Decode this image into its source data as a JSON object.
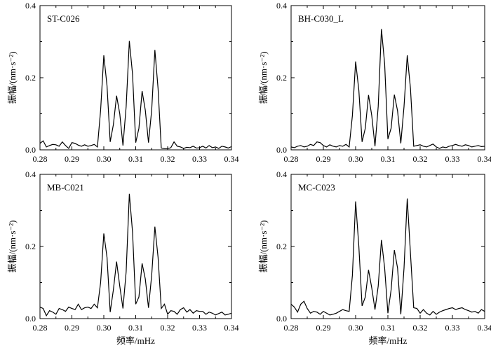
{
  "chart_data": [
    {
      "type": "line",
      "title": "ST-C026",
      "xlabel": "",
      "ylabel": "振幅/(nm·s⁻²)",
      "xlim": [
        0.28,
        0.34
      ],
      "ylim": [
        0.0,
        0.4
      ],
      "xticks": [
        "0.28",
        "0.29",
        "0.30",
        "0.31",
        "0.32",
        "0.33",
        "0.34"
      ],
      "yticks": [
        "0.0",
        "0.2",
        "0.4"
      ],
      "series": [
        {
          "name": "ST-C026",
          "x": [
            0.28,
            0.281,
            0.282,
            0.283,
            0.284,
            0.285,
            0.286,
            0.287,
            0.288,
            0.289,
            0.29,
            0.291,
            0.292,
            0.293,
            0.294,
            0.295,
            0.296,
            0.297,
            0.298,
            0.299,
            0.3,
            0.301,
            0.302,
            0.303,
            0.304,
            0.305,
            0.306,
            0.307,
            0.308,
            0.309,
            0.31,
            0.311,
            0.312,
            0.313,
            0.314,
            0.315,
            0.316,
            0.317,
            0.318,
            0.319,
            0.32,
            0.321,
            0.322,
            0.323,
            0.324,
            0.325,
            0.326,
            0.327,
            0.328,
            0.329,
            0.33,
            0.331,
            0.332,
            0.333,
            0.334,
            0.335,
            0.336,
            0.337,
            0.338,
            0.339,
            0.34
          ],
          "values": [
            0.018,
            0.025,
            0.008,
            0.012,
            0.015,
            0.014,
            0.01,
            0.022,
            0.012,
            0.004,
            0.02,
            0.018,
            0.013,
            0.01,
            0.014,
            0.01,
            0.012,
            0.015,
            0.008,
            0.11,
            0.262,
            0.178,
            0.022,
            0.07,
            0.15,
            0.1,
            0.012,
            0.12,
            0.302,
            0.21,
            0.02,
            0.06,
            0.163,
            0.11,
            0.02,
            0.11,
            0.277,
            0.17,
            0.005,
            0.003,
            0.003,
            0.006,
            0.022,
            0.01,
            0.008,
            0.004,
            0.007,
            0.006,
            0.01,
            0.005,
            0.006,
            0.01,
            0.005,
            0.012,
            0.006,
            0.008,
            0.004,
            0.01,
            0.008,
            0.005,
            0.009
          ]
        }
      ]
    },
    {
      "type": "line",
      "title": "BH-C030_L",
      "xlabel": "",
      "ylabel": "振幅/(nm·s⁻²)",
      "xlim": [
        0.28,
        0.34
      ],
      "ylim": [
        0.0,
        0.4
      ],
      "xticks": [
        "0.28",
        "0.29",
        "0.30",
        "0.31",
        "0.32",
        "0.33",
        "0.34"
      ],
      "yticks": [
        "0.0",
        "0.2",
        "0.4"
      ],
      "series": [
        {
          "name": "BH-C030_L",
          "x": [
            0.28,
            0.281,
            0.282,
            0.283,
            0.284,
            0.285,
            0.286,
            0.287,
            0.288,
            0.289,
            0.29,
            0.291,
            0.292,
            0.293,
            0.294,
            0.295,
            0.296,
            0.297,
            0.298,
            0.299,
            0.3,
            0.301,
            0.302,
            0.303,
            0.304,
            0.305,
            0.306,
            0.307,
            0.308,
            0.309,
            0.31,
            0.311,
            0.312,
            0.313,
            0.314,
            0.315,
            0.316,
            0.317,
            0.318,
            0.319,
            0.32,
            0.321,
            0.322,
            0.323,
            0.324,
            0.325,
            0.326,
            0.327,
            0.328,
            0.329,
            0.33,
            0.331,
            0.332,
            0.333,
            0.334,
            0.335,
            0.336,
            0.337,
            0.338,
            0.339,
            0.34
          ],
          "values": [
            0.008,
            0.006,
            0.01,
            0.012,
            0.008,
            0.01,
            0.015,
            0.012,
            0.022,
            0.02,
            0.012,
            0.008,
            0.014,
            0.01,
            0.008,
            0.012,
            0.01,
            0.015,
            0.008,
            0.095,
            0.245,
            0.165,
            0.022,
            0.06,
            0.152,
            0.095,
            0.01,
            0.12,
            0.335,
            0.238,
            0.03,
            0.06,
            0.153,
            0.108,
            0.018,
            0.12,
            0.262,
            0.17,
            0.01,
            0.012,
            0.014,
            0.01,
            0.008,
            0.012,
            0.016,
            0.008,
            0.004,
            0.008,
            0.006,
            0.01,
            0.012,
            0.015,
            0.012,
            0.01,
            0.014,
            0.012,
            0.008,
            0.01,
            0.012,
            0.009,
            0.01
          ]
        }
      ]
    },
    {
      "type": "line",
      "title": "MB-C021",
      "xlabel": "频率/mHz",
      "ylabel": "振幅/(nm·s⁻²)",
      "xlim": [
        0.28,
        0.34
      ],
      "ylim": [
        0.0,
        0.4
      ],
      "xticks": [
        "0.28",
        "0.29",
        "0.30",
        "0.31",
        "0.32",
        "0.33",
        "0.34"
      ],
      "yticks": [
        "0.0",
        "0.2",
        "0.4"
      ],
      "series": [
        {
          "name": "MB-C021",
          "x": [
            0.28,
            0.281,
            0.282,
            0.283,
            0.284,
            0.285,
            0.286,
            0.287,
            0.288,
            0.289,
            0.29,
            0.291,
            0.292,
            0.293,
            0.294,
            0.295,
            0.296,
            0.297,
            0.298,
            0.299,
            0.3,
            0.301,
            0.302,
            0.303,
            0.304,
            0.305,
            0.306,
            0.307,
            0.308,
            0.309,
            0.31,
            0.311,
            0.312,
            0.313,
            0.314,
            0.315,
            0.316,
            0.317,
            0.318,
            0.319,
            0.32,
            0.321,
            0.322,
            0.323,
            0.324,
            0.325,
            0.326,
            0.327,
            0.328,
            0.329,
            0.33,
            0.331,
            0.332,
            0.333,
            0.334,
            0.335,
            0.336,
            0.337,
            0.338,
            0.339,
            0.34
          ],
          "values": [
            0.032,
            0.028,
            0.008,
            0.022,
            0.018,
            0.012,
            0.028,
            0.025,
            0.02,
            0.032,
            0.028,
            0.025,
            0.04,
            0.025,
            0.03,
            0.032,
            0.028,
            0.04,
            0.03,
            0.1,
            0.236,
            0.17,
            0.018,
            0.08,
            0.158,
            0.09,
            0.028,
            0.13,
            0.346,
            0.24,
            0.04,
            0.06,
            0.153,
            0.11,
            0.03,
            0.12,
            0.255,
            0.17,
            0.028,
            0.04,
            0.012,
            0.022,
            0.02,
            0.012,
            0.025,
            0.03,
            0.018,
            0.025,
            0.015,
            0.022,
            0.02,
            0.02,
            0.012,
            0.018,
            0.015,
            0.01,
            0.014,
            0.018,
            0.01,
            0.012,
            0.015
          ]
        }
      ]
    },
    {
      "type": "line",
      "title": "MC-C023",
      "xlabel": "频率/mHz",
      "ylabel": "振幅/(nm·s⁻²)",
      "xlim": [
        0.28,
        0.34
      ],
      "ylim": [
        0.0,
        0.4
      ],
      "xticks": [
        "0.28",
        "0.29",
        "0.30",
        "0.31",
        "0.32",
        "0.33",
        "0.34"
      ],
      "yticks": [
        "0.0",
        "0.2",
        "0.4"
      ],
      "series": [
        {
          "name": "MC-C023",
          "x": [
            0.28,
            0.281,
            0.282,
            0.283,
            0.284,
            0.285,
            0.286,
            0.287,
            0.288,
            0.289,
            0.29,
            0.291,
            0.292,
            0.293,
            0.294,
            0.295,
            0.296,
            0.297,
            0.298,
            0.299,
            0.3,
            0.301,
            0.302,
            0.303,
            0.304,
            0.305,
            0.306,
            0.307,
            0.308,
            0.309,
            0.31,
            0.311,
            0.312,
            0.313,
            0.314,
            0.315,
            0.316,
            0.317,
            0.318,
            0.319,
            0.32,
            0.321,
            0.322,
            0.323,
            0.324,
            0.325,
            0.326,
            0.327,
            0.328,
            0.329,
            0.33,
            0.331,
            0.332,
            0.333,
            0.334,
            0.335,
            0.336,
            0.337,
            0.338,
            0.339,
            0.34
          ],
          "values": [
            0.04,
            0.032,
            0.018,
            0.04,
            0.048,
            0.028,
            0.015,
            0.02,
            0.018,
            0.012,
            0.02,
            0.015,
            0.01,
            0.012,
            0.015,
            0.02,
            0.025,
            0.022,
            0.02,
            0.12,
            0.325,
            0.2,
            0.035,
            0.06,
            0.135,
            0.085,
            0.025,
            0.09,
            0.218,
            0.14,
            0.015,
            0.08,
            0.19,
            0.14,
            0.012,
            0.14,
            0.333,
            0.18,
            0.03,
            0.028,
            0.015,
            0.025,
            0.015,
            0.01,
            0.02,
            0.012,
            0.018,
            0.022,
            0.025,
            0.028,
            0.03,
            0.025,
            0.028,
            0.03,
            0.025,
            0.022,
            0.018,
            0.02,
            0.015,
            0.025,
            0.02
          ]
        }
      ]
    }
  ]
}
